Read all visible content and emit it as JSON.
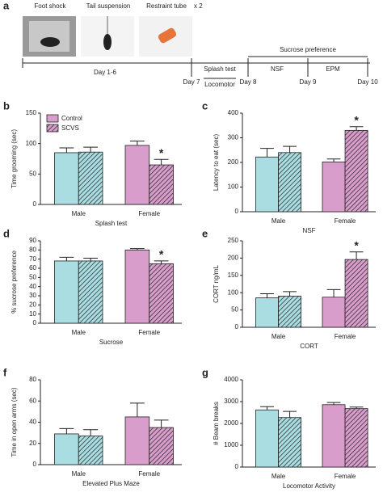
{
  "timeline": {
    "panel": "a",
    "foot_shock": "Foot shock",
    "tail_suspension": "Tail suspension",
    "restraint_tube": "Restraint tube",
    "repeat": "x 2",
    "days_1_6": "Day 1-6",
    "day7": "Day 7",
    "splash_test": "Splash test",
    "locomotor": "Locomotor",
    "day8": "Day 8",
    "nsf": "NSF",
    "day9": "Day 9",
    "epm": "EPM",
    "day10": "Day 10",
    "sucrose_preference": "Sucrose preference"
  },
  "chart_data": [
    {
      "panel": "b",
      "type": "bar",
      "ylabel": "Time grooming (sec)",
      "xlabel": "Splash test",
      "categories": [
        "Male",
        "Female"
      ],
      "category_colors": [
        "#a9dde2",
        "#d99dcb"
      ],
      "legend": "upper left",
      "series": [
        {
          "name": "Control",
          "color": "#d99dcb",
          "hatch": false,
          "values": [
            85,
            97
          ],
          "errors": [
            8,
            7
          ]
        },
        {
          "name": "SCVS",
          "color": "#d99dcb",
          "hatch": true,
          "values": [
            86,
            65
          ],
          "errors": [
            8,
            9
          ]
        }
      ],
      "annotation": {
        "text": "*",
        "category": "Female",
        "series": "SCVS"
      },
      "ylim": [
        0,
        150
      ],
      "yticks": [
        0,
        50,
        100,
        150
      ]
    },
    {
      "panel": "c",
      "type": "bar",
      "ylabel": "Latency to eat (sec)",
      "xlabel": "NSF",
      "categories": [
        "Male",
        "Female"
      ],
      "category_colors": [
        "#a9dde2",
        "#d99dcb"
      ],
      "series": [
        {
          "name": "Control",
          "hatch": false,
          "values": [
            222,
            202
          ],
          "errors": [
            35,
            12
          ]
        },
        {
          "name": "SCVS",
          "hatch": true,
          "values": [
            240,
            330
          ],
          "errors": [
            25,
            15
          ]
        }
      ],
      "annotation": {
        "text": "*",
        "category": "Female",
        "series": "SCVS"
      },
      "ylim": [
        0,
        400
      ],
      "yticks": [
        0,
        100,
        200,
        300,
        400
      ]
    },
    {
      "panel": "d",
      "type": "bar",
      "ylabel": "% sucrose preference",
      "xlabel": "Sucrose",
      "categories": [
        "Male",
        "Female"
      ],
      "category_colors": [
        "#a9dde2",
        "#d99dcb"
      ],
      "series": [
        {
          "name": "Control",
          "hatch": false,
          "values": [
            68,
            80
          ],
          "errors": [
            4,
            1.5
          ]
        },
        {
          "name": "SCVS",
          "hatch": true,
          "values": [
            68,
            65
          ],
          "errors": [
            3,
            3
          ]
        }
      ],
      "annotation": {
        "text": "*",
        "category": "Female",
        "series": "SCVS"
      },
      "ylim": [
        0,
        90
      ],
      "yticks": [
        0,
        10,
        20,
        30,
        40,
        50,
        60,
        70,
        80,
        90
      ]
    },
    {
      "panel": "e",
      "type": "bar",
      "ylabel": "CORT ng/mL",
      "xlabel": "CORT",
      "categories": [
        "Male",
        "Female"
      ],
      "category_colors": [
        "#a9dde2",
        "#d99dcb"
      ],
      "series": [
        {
          "name": "Control",
          "hatch": false,
          "values": [
            85,
            87
          ],
          "errors": [
            12,
            22
          ]
        },
        {
          "name": "SCVS",
          "hatch": true,
          "values": [
            90,
            196
          ],
          "errors": [
            13,
            22
          ]
        }
      ],
      "annotation": {
        "text": "*",
        "category": "Female",
        "series": "SCVS"
      },
      "ylim": [
        0,
        250
      ],
      "yticks": [
        0,
        50,
        100,
        150,
        200,
        250
      ]
    },
    {
      "panel": "f",
      "type": "bar",
      "ylabel": "Time in open arms (sec)",
      "xlabel": "Elevated Plus Maze",
      "categories": [
        "Male",
        "Female"
      ],
      "category_colors": [
        "#a9dde2",
        "#d99dcb"
      ],
      "series": [
        {
          "name": "Control",
          "hatch": false,
          "values": [
            29,
            45
          ],
          "errors": [
            5,
            13
          ]
        },
        {
          "name": "SCVS",
          "hatch": true,
          "values": [
            27,
            35
          ],
          "errors": [
            6,
            7
          ]
        }
      ],
      "ylim": [
        0,
        80
      ],
      "yticks": [
        0,
        20,
        40,
        60,
        80
      ]
    },
    {
      "panel": "g",
      "type": "bar",
      "ylabel": "# Beam breaks",
      "xlabel": "Locomotor Activity",
      "categories": [
        "Male",
        "Female"
      ],
      "category_colors": [
        "#a9dde2",
        "#d99dcb"
      ],
      "series": [
        {
          "name": "Control",
          "hatch": false,
          "values": [
            2620,
            2860
          ],
          "errors": [
            150,
            100
          ]
        },
        {
          "name": "SCVS",
          "hatch": true,
          "values": [
            2270,
            2680
          ],
          "errors": [
            280,
            70
          ]
        }
      ],
      "ylim": [
        0,
        4000
      ],
      "yticks": [
        0,
        1000,
        2000,
        3000,
        4000
      ]
    }
  ]
}
